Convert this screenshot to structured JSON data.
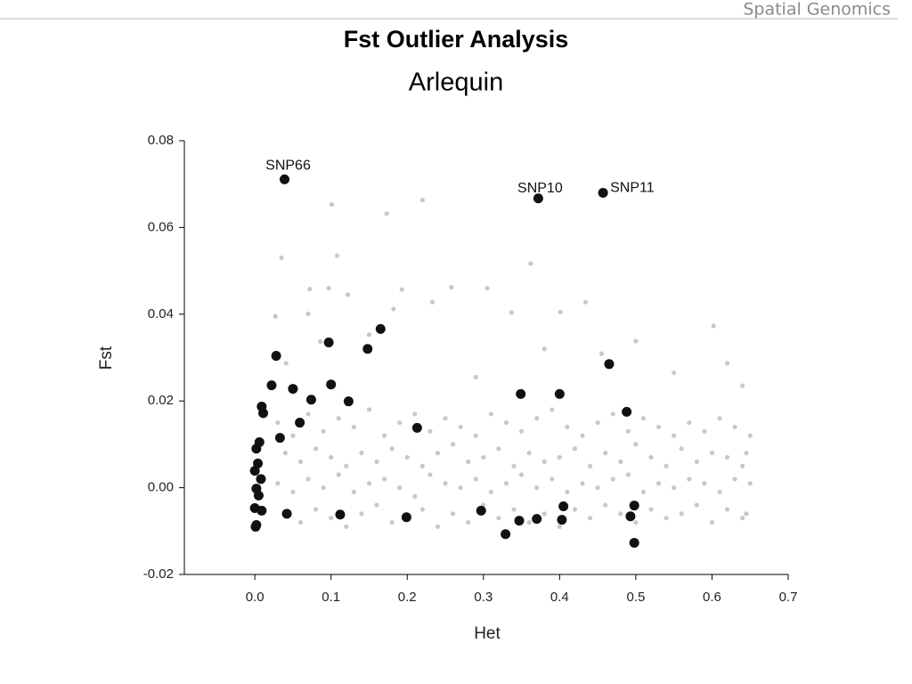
{
  "header": {
    "text": "Spatial Genomics"
  },
  "chart_data": {
    "type": "scatter",
    "title": "Fst Outlier Analysis",
    "subtitle": "Arlequin",
    "x_label": "Het",
    "y_label": "Fst",
    "xlim": [
      -0.0925,
      0.7
    ],
    "ylim": [
      -0.02,
      0.08
    ],
    "xticks": [
      {
        "value": 0,
        "label": "0.0"
      },
      0.1,
      0.2,
      0.3,
      0.4,
      0.5,
      0.6,
      0.7
    ],
    "yticks": [
      -0.02,
      {
        "value": 0,
        "label": "0.00"
      },
      0.02,
      0.04,
      0.06,
      0.08
    ],
    "series": [
      {
        "color": "#c8c8c8",
        "marker_size": 2.6,
        "x": [
          0.03,
          0.05,
          0.07,
          0.09,
          0.11,
          0.13,
          0.15,
          0.17,
          0.19,
          0.21,
          0.23,
          0.25,
          0.27,
          0.29,
          0.31,
          0.33,
          0.35,
          0.37,
          0.39,
          0.41,
          0.43,
          0.45,
          0.47,
          0.49,
          0.51,
          0.53,
          0.55,
          0.57,
          0.59,
          0.61,
          0.63,
          0.65
        ],
        "y": [
          0.015,
          0.012,
          0.017,
          0.013,
          0.016,
          0.014,
          0.018,
          0.012,
          0.015,
          0.017,
          0.013,
          0.016,
          0.014,
          0.012,
          0.017,
          0.015,
          0.013,
          0.016,
          0.018,
          0.014,
          0.012,
          0.015,
          0.017,
          0.013,
          0.016,
          0.014,
          0.012,
          0.015,
          0.013,
          0.016,
          0.014,
          0.012
        ]
      },
      {
        "color": "#c8c8c8",
        "marker_size": 2.6,
        "x": [
          0.04,
          0.06,
          0.08,
          0.1,
          0.12,
          0.14,
          0.16,
          0.18,
          0.2,
          0.22,
          0.24,
          0.26,
          0.28,
          0.3,
          0.32,
          0.34,
          0.36,
          0.38,
          0.4,
          0.42,
          0.44,
          0.46,
          0.48,
          0.5,
          0.52,
          0.54,
          0.56,
          0.58,
          0.6,
          0.62,
          0.64,
          0.645
        ],
        "y": [
          0.008,
          0.006,
          0.009,
          0.007,
          0.005,
          0.008,
          0.006,
          0.009,
          0.007,
          0.005,
          0.008,
          0.01,
          0.006,
          0.007,
          0.009,
          0.005,
          0.008,
          0.006,
          0.007,
          0.009,
          0.005,
          0.008,
          0.006,
          0.01,
          0.007,
          0.005,
          0.009,
          0.006,
          0.008,
          0.007,
          0.005,
          0.008
        ]
      },
      {
        "color": "#c8c8c8",
        "marker_size": 2.6,
        "x": [
          0.03,
          0.05,
          0.07,
          0.09,
          0.11,
          0.13,
          0.15,
          0.17,
          0.19,
          0.21,
          0.23,
          0.25,
          0.27,
          0.29,
          0.31,
          0.33,
          0.35,
          0.37,
          0.39,
          0.41,
          0.43,
          0.45,
          0.47,
          0.49,
          0.51,
          0.53,
          0.55,
          0.57,
          0.59,
          0.61,
          0.63,
          0.65
        ],
        "y": [
          0.001,
          -0.001,
          0.002,
          0,
          0.003,
          -0.001,
          0.001,
          0.002,
          0,
          -0.002,
          0.003,
          0.001,
          0,
          0.002,
          -0.001,
          0.001,
          0.003,
          0,
          0.002,
          -0.001,
          0.001,
          0,
          0.002,
          0.003,
          -0.001,
          0.001,
          0,
          0.002,
          0.001,
          -0.001,
          0.002,
          0.001
        ]
      },
      {
        "color": "#c8c8c8",
        "marker_size": 2.6,
        "x": [
          0.04,
          0.06,
          0.08,
          0.1,
          0.12,
          0.14,
          0.16,
          0.18,
          0.2,
          0.22,
          0.24,
          0.26,
          0.28,
          0.3,
          0.32,
          0.34,
          0.36,
          0.38,
          0.4,
          0.42,
          0.44,
          0.46,
          0.48,
          0.5,
          0.52,
          0.54,
          0.56,
          0.58,
          0.6,
          0.62,
          0.64,
          0.645
        ],
        "y": [
          -0.006,
          -0.008,
          -0.005,
          -0.007,
          -0.009,
          -0.006,
          -0.004,
          -0.008,
          -0.007,
          -0.005,
          -0.009,
          -0.006,
          -0.008,
          -0.004,
          -0.007,
          -0.005,
          -0.008,
          -0.006,
          -0.009,
          -0.005,
          -0.007,
          -0.004,
          -0.006,
          -0.008,
          -0.005,
          -0.007,
          -0.006,
          -0.004,
          -0.008,
          -0.005,
          -0.007,
          -0.006
        ]
      },
      {
        "color": "#c8c8c8",
        "marker_size": 2.6,
        "x": [
          0.22,
          0.101,
          0.173,
          0.362,
          0.108,
          0.035,
          0.258,
          0.305,
          0.193,
          0.097,
          0.072,
          0.122,
          0.401,
          0.233,
          0.434,
          0.602,
          0.337,
          0.027,
          0.07,
          0.182,
          0.5,
          0.62,
          0.38,
          0.455,
          0.15,
          0.086,
          0.041,
          0.55,
          0.29,
          0.64
        ],
        "y": [
          0.0663,
          0.0653,
          0.0632,
          0.0517,
          0.0535,
          0.053,
          0.0462,
          0.046,
          0.0457,
          0.046,
          0.0458,
          0.0445,
          0.0405,
          0.0428,
          0.0428,
          0.0373,
          0.0404,
          0.0395,
          0.0401,
          0.0412,
          0.0338,
          0.0287,
          0.032,
          0.0309,
          0.0353,
          0.0337,
          0.0287,
          0.0265,
          0.0255,
          0.0235
        ]
      },
      {
        "color": "#111111",
        "marker_size": 5.5,
        "x": [
          0.039,
          0.372,
          0.457,
          0.165,
          0.097,
          0.148,
          0.028,
          0.465,
          0.022,
          0.05,
          0.1,
          0.074,
          0.123,
          0.349,
          0.4,
          0.009,
          0.011,
          0.488,
          0.033,
          0.006,
          0.002,
          0.004,
          0,
          0.008,
          0.002,
          0.005,
          0,
          0.009,
          0.002,
          0.001,
          0.329,
          0.498,
          0.347,
          0.403,
          0.37,
          0.493,
          0.042,
          0.112,
          0.199,
          0.297,
          0.498,
          0.405,
          0.213,
          0.059
        ],
        "y": [
          0.0711,
          0.0667,
          0.068,
          0.0366,
          0.0335,
          0.032,
          0.0304,
          0.0285,
          0.0236,
          0.0228,
          0.0238,
          0.0203,
          0.0199,
          0.0216,
          0.0216,
          0.0187,
          0.0172,
          0.0175,
          0.0115,
          0.0105,
          0.009,
          0.0056,
          0.0039,
          0.002,
          -0.0002,
          -0.0018,
          -0.0047,
          -0.0053,
          -0.0086,
          -0.009,
          -0.0107,
          -0.0127,
          -0.0076,
          -0.0074,
          -0.0072,
          -0.0066,
          -0.006,
          -0.0062,
          -0.0068,
          -0.0053,
          -0.0041,
          -0.0043,
          0.0138,
          0.015
        ]
      }
    ],
    "annotations": [
      {
        "text": "SNP66",
        "x": 0.039,
        "y": 0.0711
      },
      {
        "text": "SNP10",
        "x": 0.372,
        "y": 0.0667
      },
      {
        "text": "SNP11",
        "x": 0.457,
        "y": 0.068
      }
    ]
  }
}
